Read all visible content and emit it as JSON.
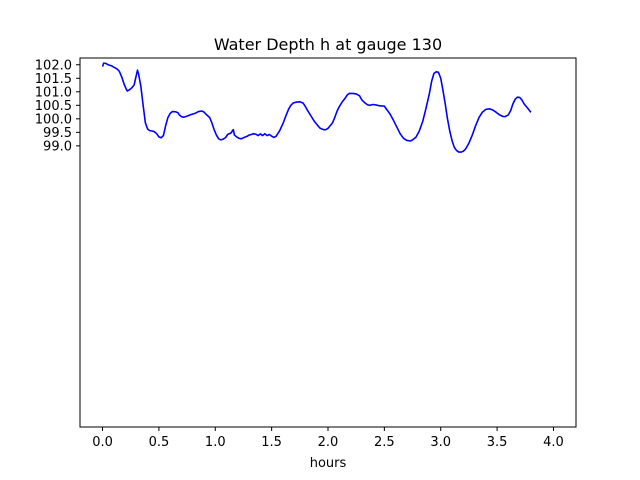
{
  "chart_data": {
    "type": "line",
    "title": "Water Depth h at gauge 130",
    "xlabel": "hours",
    "ylabel": "",
    "xlim": [
      -0.2,
      4.2
    ],
    "ylim": [
      88.6,
      102.25
    ],
    "xticks": [
      0.0,
      0.5,
      1.0,
      1.5,
      2.0,
      2.5,
      3.0,
      3.5,
      4.0
    ],
    "xtick_labels": [
      "0.0",
      "0.5",
      "1.0",
      "1.5",
      "2.0",
      "2.5",
      "3.0",
      "3.5",
      "4.0"
    ],
    "yticks": [
      99.0,
      99.5,
      100.0,
      100.5,
      101.0,
      101.5,
      102.0
    ],
    "ytick_labels": [
      "99.0",
      "99.5",
      "100.0",
      "100.5",
      "101.0",
      "101.5",
      "102.0"
    ],
    "grid": false,
    "series": [
      {
        "color": "#0000ff",
        "points": [
          [
            0.0,
            101.93
          ],
          [
            0.01,
            102.06
          ],
          [
            0.03,
            102.05
          ],
          [
            0.05,
            102.0
          ],
          [
            0.08,
            101.96
          ],
          [
            0.1,
            101.91
          ],
          [
            0.13,
            101.84
          ],
          [
            0.15,
            101.75
          ],
          [
            0.17,
            101.55
          ],
          [
            0.19,
            101.3
          ],
          [
            0.21,
            101.1
          ],
          [
            0.22,
            101.03
          ],
          [
            0.24,
            101.08
          ],
          [
            0.26,
            101.15
          ],
          [
            0.28,
            101.25
          ],
          [
            0.3,
            101.62
          ],
          [
            0.31,
            101.8
          ],
          [
            0.32,
            101.65
          ],
          [
            0.34,
            101.2
          ],
          [
            0.36,
            100.5
          ],
          [
            0.38,
            99.85
          ],
          [
            0.4,
            99.62
          ],
          [
            0.42,
            99.56
          ],
          [
            0.44,
            99.55
          ],
          [
            0.46,
            99.52
          ],
          [
            0.48,
            99.45
          ],
          [
            0.5,
            99.33
          ],
          [
            0.52,
            99.3
          ],
          [
            0.54,
            99.38
          ],
          [
            0.56,
            99.75
          ],
          [
            0.58,
            100.05
          ],
          [
            0.6,
            100.2
          ],
          [
            0.62,
            100.27
          ],
          [
            0.65,
            100.26
          ],
          [
            0.67,
            100.22
          ],
          [
            0.68,
            100.15
          ],
          [
            0.7,
            100.08
          ],
          [
            0.72,
            100.06
          ],
          [
            0.75,
            100.1
          ],
          [
            0.78,
            100.15
          ],
          [
            0.82,
            100.2
          ],
          [
            0.85,
            100.27
          ],
          [
            0.88,
            100.29
          ],
          [
            0.9,
            100.25
          ],
          [
            0.92,
            100.16
          ],
          [
            0.95,
            100.05
          ],
          [
            0.97,
            99.85
          ],
          [
            0.99,
            99.6
          ],
          [
            1.01,
            99.4
          ],
          [
            1.03,
            99.26
          ],
          [
            1.05,
            99.22
          ],
          [
            1.07,
            99.25
          ],
          [
            1.09,
            99.3
          ],
          [
            1.11,
            99.42
          ],
          [
            1.14,
            99.48
          ],
          [
            1.16,
            99.6
          ],
          [
            1.17,
            99.4
          ],
          [
            1.19,
            99.33
          ],
          [
            1.21,
            99.28
          ],
          [
            1.23,
            99.26
          ],
          [
            1.25,
            99.3
          ],
          [
            1.28,
            99.35
          ],
          [
            1.3,
            99.4
          ],
          [
            1.32,
            99.42
          ],
          [
            1.34,
            99.45
          ],
          [
            1.36,
            99.43
          ],
          [
            1.38,
            99.38
          ],
          [
            1.4,
            99.44
          ],
          [
            1.42,
            99.38
          ],
          [
            1.44,
            99.45
          ],
          [
            1.46,
            99.38
          ],
          [
            1.48,
            99.42
          ],
          [
            1.5,
            99.36
          ],
          [
            1.52,
            99.31
          ],
          [
            1.54,
            99.36
          ],
          [
            1.57,
            99.55
          ],
          [
            1.6,
            99.82
          ],
          [
            1.63,
            100.15
          ],
          [
            1.65,
            100.35
          ],
          [
            1.67,
            100.5
          ],
          [
            1.69,
            100.58
          ],
          [
            1.72,
            100.62
          ],
          [
            1.75,
            100.63
          ],
          [
            1.78,
            100.58
          ],
          [
            1.8,
            100.45
          ],
          [
            1.82,
            100.3
          ],
          [
            1.85,
            100.1
          ],
          [
            1.88,
            99.9
          ],
          [
            1.91,
            99.75
          ],
          [
            1.93,
            99.65
          ],
          [
            1.96,
            99.6
          ],
          [
            1.98,
            99.6
          ],
          [
            2.0,
            99.65
          ],
          [
            2.02,
            99.75
          ],
          [
            2.04,
            99.85
          ],
          [
            2.06,
            100.05
          ],
          [
            2.08,
            100.28
          ],
          [
            2.1,
            100.45
          ],
          [
            2.13,
            100.65
          ],
          [
            2.15,
            100.75
          ],
          [
            2.17,
            100.88
          ],
          [
            2.19,
            100.94
          ],
          [
            2.22,
            100.94
          ],
          [
            2.25,
            100.92
          ],
          [
            2.28,
            100.85
          ],
          [
            2.3,
            100.7
          ],
          [
            2.33,
            100.58
          ],
          [
            2.35,
            100.52
          ],
          [
            2.37,
            100.5
          ],
          [
            2.4,
            100.53
          ],
          [
            2.43,
            100.51
          ],
          [
            2.46,
            100.48
          ],
          [
            2.5,
            100.47
          ],
          [
            2.52,
            100.35
          ],
          [
            2.55,
            100.18
          ],
          [
            2.58,
            99.95
          ],
          [
            2.61,
            99.7
          ],
          [
            2.64,
            99.45
          ],
          [
            2.67,
            99.28
          ],
          [
            2.7,
            99.2
          ],
          [
            2.73,
            99.18
          ],
          [
            2.75,
            99.22
          ],
          [
            2.78,
            99.32
          ],
          [
            2.81,
            99.55
          ],
          [
            2.84,
            99.9
          ],
          [
            2.87,
            100.4
          ],
          [
            2.9,
            100.95
          ],
          [
            2.92,
            101.4
          ],
          [
            2.94,
            101.68
          ],
          [
            2.96,
            101.74
          ],
          [
            2.98,
            101.72
          ],
          [
            3.0,
            101.5
          ],
          [
            3.02,
            101.05
          ],
          [
            3.04,
            100.55
          ],
          [
            3.06,
            100.0
          ],
          [
            3.08,
            99.55
          ],
          [
            3.1,
            99.2
          ],
          [
            3.12,
            98.95
          ],
          [
            3.14,
            98.83
          ],
          [
            3.16,
            98.77
          ],
          [
            3.18,
            98.77
          ],
          [
            3.2,
            98.8
          ],
          [
            3.22,
            98.88
          ],
          [
            3.25,
            99.1
          ],
          [
            3.28,
            99.4
          ],
          [
            3.31,
            99.75
          ],
          [
            3.34,
            100.05
          ],
          [
            3.37,
            100.25
          ],
          [
            3.4,
            100.35
          ],
          [
            3.43,
            100.37
          ],
          [
            3.46,
            100.33
          ],
          [
            3.49,
            100.25
          ],
          [
            3.52,
            100.15
          ],
          [
            3.55,
            100.09
          ],
          [
            3.57,
            100.08
          ],
          [
            3.6,
            100.15
          ],
          [
            3.62,
            100.3
          ],
          [
            3.64,
            100.55
          ],
          [
            3.66,
            100.72
          ],
          [
            3.68,
            100.8
          ],
          [
            3.7,
            100.79
          ],
          [
            3.72,
            100.7
          ],
          [
            3.74,
            100.55
          ],
          [
            3.77,
            100.4
          ],
          [
            3.8,
            100.24
          ]
        ]
      }
    ]
  }
}
